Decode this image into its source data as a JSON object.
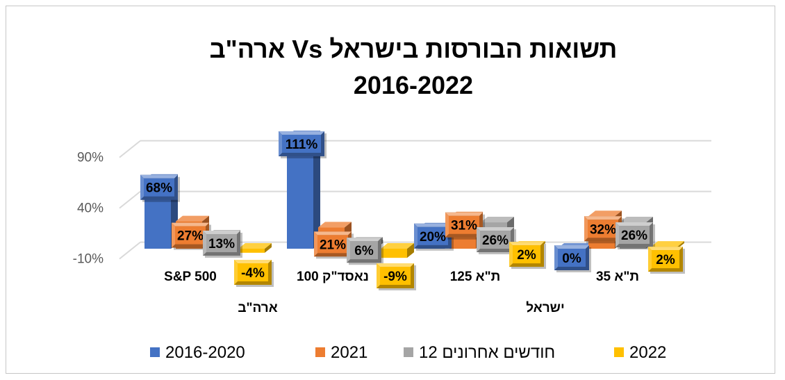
{
  "chart_data": {
    "type": "bar",
    "title": "תשואות הבורסות בישראל Vs ארה\"ב",
    "subtitle": "2016-2022",
    "yticks": [
      "90%",
      "40%",
      "-10%"
    ],
    "ylim": [
      -10,
      110
    ],
    "grid": true,
    "legend_position": "bottom",
    "categories": [
      "S&P 500",
      "נאסד\"ק 100",
      "ת\"א 125",
      "ת\"א 35"
    ],
    "groups": [
      {
        "label": "ארה\"ב",
        "categories": [
          "S&P 500",
          "נאסד\"ק 100"
        ]
      },
      {
        "label": "ישראל",
        "categories": [
          "ת\"א 125",
          "ת\"א 35"
        ]
      }
    ],
    "series": [
      {
        "name": "2016-2020",
        "color": "#4472C4",
        "values": [
          68,
          111,
          20,
          0
        ],
        "labels": [
          "68%",
          "111%",
          "20%",
          "0%"
        ]
      },
      {
        "name": "2021",
        "color": "#ED7D31",
        "values": [
          27,
          21,
          31,
          32
        ],
        "labels": [
          "27%",
          "21%",
          "31%",
          "32%"
        ]
      },
      {
        "name": "12 חודשים אחרונים",
        "color": "#A5A5A5",
        "values": [
          13,
          6,
          26,
          26
        ],
        "labels": [
          "13%",
          "6%",
          "26%",
          "26%"
        ]
      },
      {
        "name": "2022",
        "color": "#FFC000",
        "values": [
          -4,
          -9,
          2,
          2
        ],
        "labels": [
          "-4%",
          "-9%",
          "2%",
          "2%"
        ]
      }
    ]
  }
}
